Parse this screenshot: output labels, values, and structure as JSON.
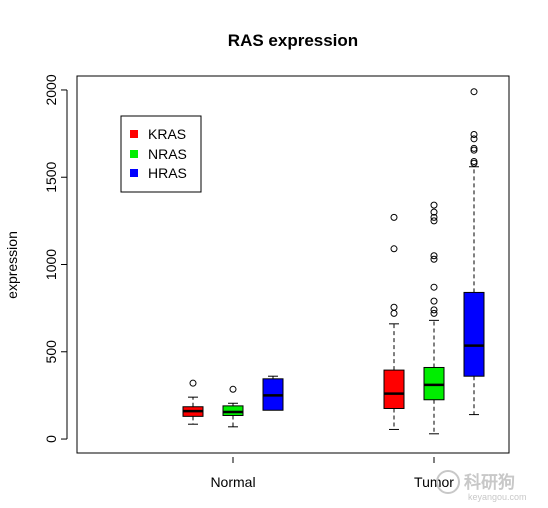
{
  "chart_data": {
    "type": "box",
    "title": "RAS expression",
    "xlabel": "",
    "ylabel": "expression",
    "ylim": [
      -80,
      2080
    ],
    "yticks": [
      0,
      500,
      1000,
      1500,
      2000
    ],
    "categories": [
      "Normal",
      "Tumor"
    ],
    "legend": {
      "placement": "top-left",
      "entries": [
        {
          "name": "KRAS",
          "color": "#ff0000"
        },
        {
          "name": "NRAS",
          "color": "#00ee00"
        },
        {
          "name": "HRAS",
          "color": "#0000ff"
        }
      ]
    },
    "boxes": [
      {
        "group": "Normal",
        "gene": "KRAS",
        "color": "#ff0000",
        "min": 85,
        "q1": 130,
        "median": 160,
        "q3": 185,
        "max": 240,
        "outliers": [
          320
        ]
      },
      {
        "group": "Normal",
        "gene": "NRAS",
        "color": "#00ee00",
        "min": 70,
        "q1": 135,
        "median": 155,
        "q3": 190,
        "max": 205,
        "outliers": [
          285
        ]
      },
      {
        "group": "Normal",
        "gene": "HRAS",
        "color": "#0000ff",
        "min": 165,
        "q1": 165,
        "median": 250,
        "q3": 345,
        "max": 360,
        "outliers": []
      },
      {
        "group": "Tumor",
        "gene": "KRAS",
        "color": "#ff0000",
        "min": 55,
        "q1": 175,
        "median": 260,
        "q3": 395,
        "max": 660,
        "outliers": [
          720,
          755,
          1090,
          1270
        ]
      },
      {
        "group": "Tumor",
        "gene": "NRAS",
        "color": "#00ee00",
        "min": 30,
        "q1": 225,
        "median": 310,
        "q3": 410,
        "max": 680,
        "outliers": [
          720,
          740,
          790,
          870,
          1030,
          1050,
          1250,
          1270,
          1300,
          1340
        ]
      },
      {
        "group": "Tumor",
        "gene": "HRAS",
        "color": "#0000ff",
        "min": 140,
        "q1": 360,
        "median": 535,
        "q3": 840,
        "max": 1560,
        "outliers": [
          1580,
          1590,
          1655,
          1665,
          1720,
          1745,
          1990
        ]
      }
    ]
  },
  "watermark": {
    "text": "科研狗",
    "subtext": "keyangou.com"
  }
}
